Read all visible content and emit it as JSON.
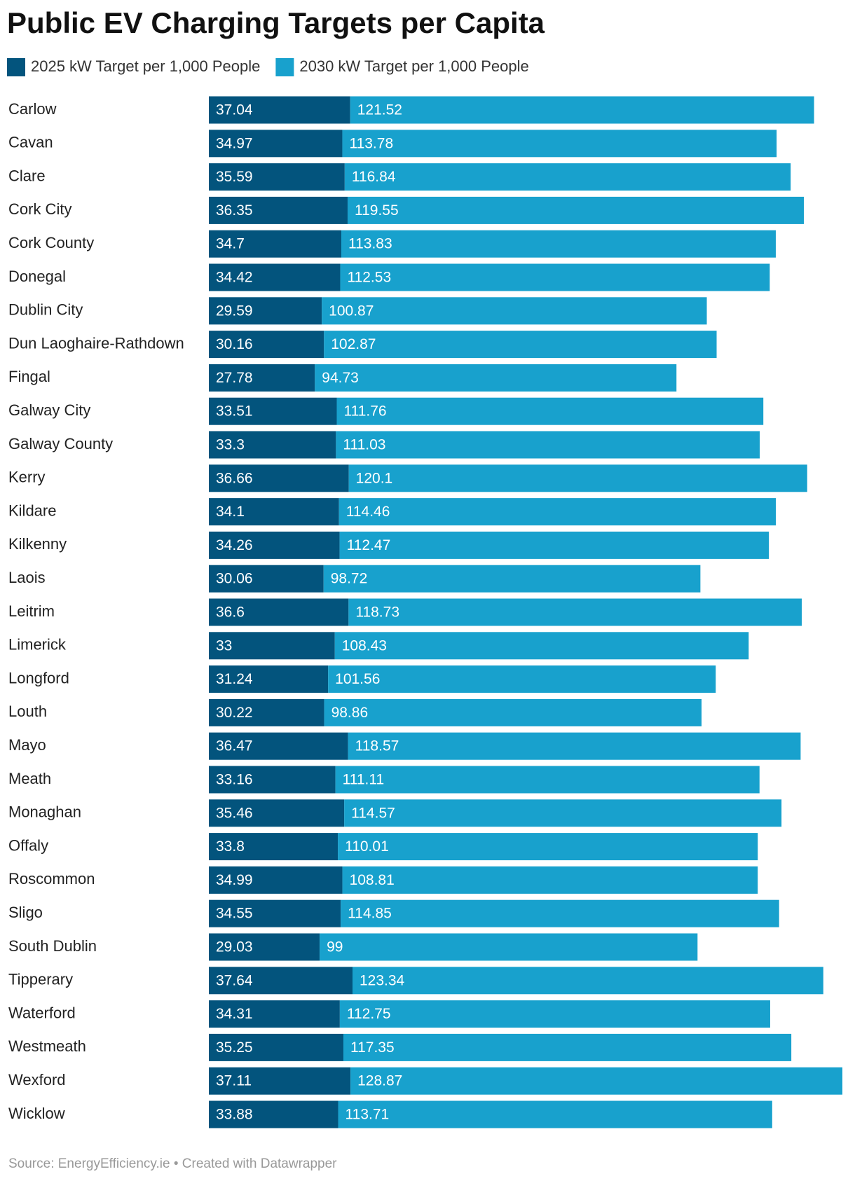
{
  "chart_data": {
    "type": "bar",
    "stacked": true,
    "orientation": "horizontal",
    "title": "Public EV Charging Targets per Capita",
    "source": "Source: EnergyEfficiency.ie • Created with Datawrapper",
    "categories": [
      "Carlow",
      "Cavan",
      "Clare",
      "Cork City",
      "Cork County",
      "Donegal",
      "Dublin City",
      "Dun Laoghaire-Rathdown",
      "Fingal",
      "Galway City",
      "Galway County",
      "Kerry",
      "Kildare",
      "Kilkenny",
      "Laois",
      "Leitrim",
      "Limerick",
      "Longford",
      "Louth",
      "Mayo",
      "Meath",
      "Monaghan",
      "Offaly",
      "Roscommon",
      "Sligo",
      "South Dublin",
      "Tipperary",
      "Waterford",
      "Westmeath",
      "Wexford",
      "Wicklow"
    ],
    "series": [
      {
        "name": "2025 kW Target per 1,000 People",
        "color": "#03547d",
        "values": [
          37.04,
          34.97,
          35.59,
          36.35,
          34.7,
          34.42,
          29.59,
          30.16,
          27.78,
          33.51,
          33.3,
          36.66,
          34.1,
          34.26,
          30.06,
          36.6,
          33,
          31.24,
          30.22,
          36.47,
          33.16,
          35.46,
          33.8,
          34.99,
          34.55,
          29.03,
          37.64,
          34.31,
          35.25,
          37.11,
          33.88
        ]
      },
      {
        "name": "2030 kW Target per 1,000 People",
        "color": "#18a1cd",
        "values": [
          121.52,
          113.78,
          116.84,
          119.55,
          113.83,
          112.53,
          100.87,
          102.87,
          94.73,
          111.76,
          111.03,
          120.1,
          114.46,
          112.47,
          98.72,
          118.73,
          108.43,
          101.56,
          98.86,
          118.57,
          111.11,
          114.57,
          110.01,
          108.81,
          114.85,
          99,
          123.34,
          112.75,
          117.35,
          128.87,
          113.71
        ]
      }
    ]
  }
}
